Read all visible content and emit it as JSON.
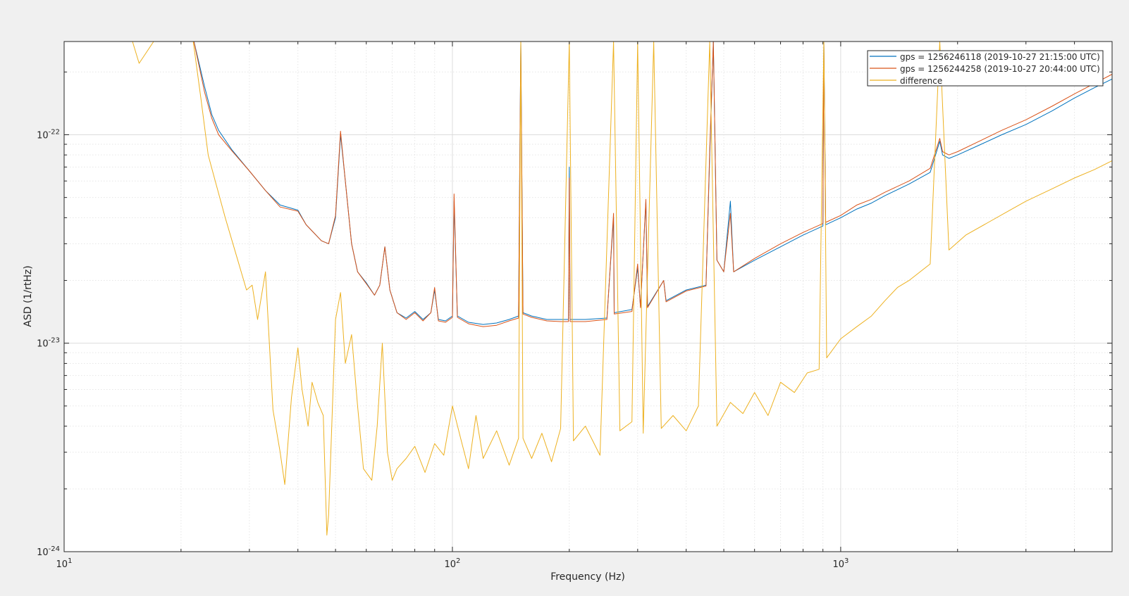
{
  "chart_data": {
    "type": "line",
    "xlabel": "Frequency (Hz)",
    "ylabel": "ASD (1/rtHz)",
    "xscale": "log",
    "yscale": "log",
    "xlim": [
      10,
      5000
    ],
    "ylim": [
      1e-24,
      2.8e-22
    ],
    "grid": true,
    "minor_grid": true,
    "legend_position": "top-right",
    "x_ticks": [
      {
        "value": 10,
        "base": "10",
        "exp": "1"
      },
      {
        "value": 100,
        "base": "10",
        "exp": "2"
      },
      {
        "value": 1000,
        "base": "10",
        "exp": "3"
      }
    ],
    "y_ticks": [
      {
        "value": 1e-24,
        "base": "10",
        "exp": "-24"
      },
      {
        "value": 1e-23,
        "base": "10",
        "exp": "-23"
      },
      {
        "value": 1e-22,
        "base": "10",
        "exp": "-22"
      }
    ],
    "series": [
      {
        "name": "gps = 1256246118 (2019-10-27 21:15:00 UTC)",
        "color": "#0072BD",
        "points": [
          [
            21.5,
            2.9e-22
          ],
          [
            23,
            1.7e-22
          ],
          [
            24,
            1.25e-22
          ],
          [
            25,
            1.05e-22
          ],
          [
            27,
            8.5e-23
          ],
          [
            30,
            6.7e-23
          ],
          [
            33,
            5.4e-23
          ],
          [
            36,
            4.6e-23
          ],
          [
            40,
            4.35e-23
          ],
          [
            42,
            3.7e-23
          ],
          [
            46,
            3.1e-23
          ],
          [
            48,
            3e-23
          ],
          [
            50,
            4e-23
          ],
          [
            51.5,
            1e-22
          ],
          [
            53,
            6e-23
          ],
          [
            55,
            3e-23
          ],
          [
            57,
            2.2e-23
          ],
          [
            60,
            1.95e-23
          ],
          [
            63,
            1.7e-23
          ],
          [
            65,
            1.9e-23
          ],
          [
            67,
            2.9e-23
          ],
          [
            69,
            1.8e-23
          ],
          [
            72,
            1.4e-23
          ],
          [
            76,
            1.32e-23
          ],
          [
            80,
            1.42e-23
          ],
          [
            84,
            1.3e-23
          ],
          [
            88,
            1.4e-23
          ],
          [
            90,
            1.8e-23
          ],
          [
            92,
            1.3e-23
          ],
          [
            96,
            1.28e-23
          ],
          [
            100,
            1.35e-23
          ],
          [
            101,
            4.8e-23
          ],
          [
            103,
            1.35e-23
          ],
          [
            110,
            1.26e-23
          ],
          [
            120,
            1.23e-23
          ],
          [
            130,
            1.25e-23
          ],
          [
            140,
            1.3e-23
          ],
          [
            148,
            1.35e-23
          ],
          [
            150,
            2.8e-22
          ],
          [
            152,
            1.4e-23
          ],
          [
            160,
            1.35e-23
          ],
          [
            175,
            1.3e-23
          ],
          [
            190,
            1.3e-23
          ],
          [
            199,
            1.3e-23
          ],
          [
            200,
            7e-23
          ],
          [
            201,
            1.3e-23
          ],
          [
            220,
            1.3e-23
          ],
          [
            250,
            1.32e-23
          ],
          [
            260,
            4e-23
          ],
          [
            261,
            1.4e-23
          ],
          [
            290,
            1.45e-23
          ],
          [
            300,
            2.3e-23
          ],
          [
            305,
            1.5e-23
          ],
          [
            315,
            4.8e-23
          ],
          [
            318,
            1.5e-23
          ],
          [
            350,
            2e-23
          ],
          [
            355,
            1.6e-23
          ],
          [
            400,
            1.8e-23
          ],
          [
            450,
            1.9e-23
          ],
          [
            460,
            8e-23
          ],
          [
            470,
            2.8e-22
          ],
          [
            480,
            2.5e-23
          ],
          [
            500,
            2.2e-23
          ],
          [
            520,
            4.8e-23
          ],
          [
            530,
            2.2e-23
          ],
          [
            600,
            2.5e-23
          ],
          [
            700,
            2.9e-23
          ],
          [
            800,
            3.3e-23
          ],
          [
            900,
            3.65e-23
          ],
          [
            905,
            2.8e-22
          ],
          [
            915,
            3.7e-23
          ],
          [
            1000,
            4e-23
          ],
          [
            1100,
            4.4e-23
          ],
          [
            1200,
            4.7e-23
          ],
          [
            1300,
            5.1e-23
          ],
          [
            1500,
            5.8e-23
          ],
          [
            1700,
            6.6e-23
          ],
          [
            1800,
            9.3e-23
          ],
          [
            1830,
            8e-23
          ],
          [
            1900,
            7.7e-23
          ],
          [
            2000,
            8e-23
          ],
          [
            2300,
            9e-23
          ],
          [
            2600,
            1e-22
          ],
          [
            3000,
            1.12e-22
          ],
          [
            3500,
            1.3e-22
          ],
          [
            4000,
            1.5e-22
          ],
          [
            4500,
            1.68e-22
          ],
          [
            5000,
            1.85e-22
          ]
        ]
      },
      {
        "name": "gps = 1256244258 (2019-10-27 20:44:00 UTC)",
        "color": "#D95319",
        "points": [
          [
            21.5,
            2.9e-22
          ],
          [
            23,
            1.6e-22
          ],
          [
            24,
            1.2e-22
          ],
          [
            25,
            1e-22
          ],
          [
            27,
            8.4e-23
          ],
          [
            30,
            6.7e-23
          ],
          [
            33,
            5.4e-23
          ],
          [
            36,
            4.5e-23
          ],
          [
            40,
            4.3e-23
          ],
          [
            42,
            3.7e-23
          ],
          [
            46,
            3.1e-23
          ],
          [
            48,
            3e-23
          ],
          [
            50,
            4.1e-23
          ],
          [
            51.5,
            1.04e-22
          ],
          [
            53,
            6e-23
          ],
          [
            55,
            3e-23
          ],
          [
            57,
            2.2e-23
          ],
          [
            60,
            1.93e-23
          ],
          [
            63,
            1.7e-23
          ],
          [
            65,
            1.9e-23
          ],
          [
            67,
            2.9e-23
          ],
          [
            69,
            1.8e-23
          ],
          [
            72,
            1.4e-23
          ],
          [
            76,
            1.3e-23
          ],
          [
            80,
            1.4e-23
          ],
          [
            84,
            1.28e-23
          ],
          [
            88,
            1.4e-23
          ],
          [
            90,
            1.85e-23
          ],
          [
            92,
            1.28e-23
          ],
          [
            96,
            1.26e-23
          ],
          [
            100,
            1.33e-23
          ],
          [
            101,
            5.2e-23
          ],
          [
            103,
            1.33e-23
          ],
          [
            110,
            1.24e-23
          ],
          [
            120,
            1.2e-23
          ],
          [
            130,
            1.22e-23
          ],
          [
            140,
            1.28e-23
          ],
          [
            148,
            1.32e-23
          ],
          [
            150,
            2.8e-22
          ],
          [
            152,
            1.38e-23
          ],
          [
            160,
            1.33e-23
          ],
          [
            175,
            1.28e-23
          ],
          [
            190,
            1.27e-23
          ],
          [
            199,
            1.27e-23
          ],
          [
            200,
            6.2e-23
          ],
          [
            201,
            1.27e-23
          ],
          [
            220,
            1.27e-23
          ],
          [
            250,
            1.3e-23
          ],
          [
            260,
            4.2e-23
          ],
          [
            261,
            1.38e-23
          ],
          [
            290,
            1.42e-23
          ],
          [
            300,
            2.4e-23
          ],
          [
            305,
            1.48e-23
          ],
          [
            315,
            4.9e-23
          ],
          [
            318,
            1.48e-23
          ],
          [
            350,
            2e-23
          ],
          [
            355,
            1.58e-23
          ],
          [
            400,
            1.78e-23
          ],
          [
            450,
            1.88e-23
          ],
          [
            460,
            8.5e-23
          ],
          [
            470,
            2.8e-22
          ],
          [
            480,
            2.5e-23
          ],
          [
            500,
            2.2e-23
          ],
          [
            520,
            4.2e-23
          ],
          [
            530,
            2.2e-23
          ],
          [
            600,
            2.55e-23
          ],
          [
            700,
            3e-23
          ],
          [
            800,
            3.4e-23
          ],
          [
            900,
            3.75e-23
          ],
          [
            905,
            2.8e-22
          ],
          [
            915,
            3.8e-23
          ],
          [
            1000,
            4.1e-23
          ],
          [
            1100,
            4.6e-23
          ],
          [
            1200,
            4.9e-23
          ],
          [
            1300,
            5.3e-23
          ],
          [
            1500,
            6e-23
          ],
          [
            1700,
            6.9e-23
          ],
          [
            1800,
            9.6e-23
          ],
          [
            1830,
            8.3e-23
          ],
          [
            1900,
            8e-23
          ],
          [
            2000,
            8.3e-23
          ],
          [
            2300,
            9.4e-23
          ],
          [
            2600,
            1.05e-22
          ],
          [
            3000,
            1.18e-22
          ],
          [
            3500,
            1.37e-22
          ],
          [
            4000,
            1.57e-22
          ],
          [
            4500,
            1.76e-22
          ],
          [
            5000,
            1.95e-22
          ]
        ]
      },
      {
        "name": "difference",
        "color": "#EDB120",
        "points": [
          [
            15,
            2.8e-22
          ],
          [
            15.6,
            2.2e-22
          ],
          [
            17,
            2.8e-22
          ],
          [
            21.5,
            2.8e-22
          ],
          [
            22.5,
            1.5e-22
          ],
          [
            23.5,
            8e-23
          ],
          [
            24.5,
            6e-23
          ],
          [
            26,
            4e-23
          ],
          [
            28,
            2.5e-23
          ],
          [
            29.5,
            1.8e-23
          ],
          [
            30.5,
            1.9e-23
          ],
          [
            31.5,
            1.3e-23
          ],
          [
            33,
            2.2e-23
          ],
          [
            34.5,
            4.8e-24
          ],
          [
            36,
            3e-24
          ],
          [
            37,
            2.1e-24
          ],
          [
            38.5,
            5.5e-24
          ],
          [
            40,
            9.5e-24
          ],
          [
            41,
            6e-24
          ],
          [
            42.5,
            4e-24
          ],
          [
            43.5,
            6.5e-24
          ],
          [
            45,
            5.2e-24
          ],
          [
            46.5,
            4.5e-24
          ],
          [
            47.5,
            1.2e-24
          ],
          [
            48,
            1.5e-24
          ],
          [
            50,
            1.3e-23
          ],
          [
            51.5,
            1.75e-23
          ],
          [
            53,
            8e-24
          ],
          [
            55,
            1.1e-23
          ],
          [
            57,
            5e-24
          ],
          [
            59,
            2.5e-24
          ],
          [
            62,
            2.2e-24
          ],
          [
            64,
            4e-24
          ],
          [
            66,
            1e-23
          ],
          [
            68,
            3e-24
          ],
          [
            70,
            2.2e-24
          ],
          [
            72,
            2.5e-24
          ],
          [
            76,
            2.8e-24
          ],
          [
            80,
            3.2e-24
          ],
          [
            85,
            2.4e-24
          ],
          [
            90,
            3.3e-24
          ],
          [
            95,
            2.9e-24
          ],
          [
            100,
            5e-24
          ],
          [
            105,
            3.5e-24
          ],
          [
            110,
            2.5e-24
          ],
          [
            115,
            4.5e-24
          ],
          [
            120,
            2.8e-24
          ],
          [
            130,
            3.8e-24
          ],
          [
            140,
            2.6e-24
          ],
          [
            148,
            3.5e-24
          ],
          [
            150,
            2.8e-22
          ],
          [
            152,
            3.5e-24
          ],
          [
            160,
            2.8e-24
          ],
          [
            170,
            3.7e-24
          ],
          [
            180,
            2.7e-24
          ],
          [
            190,
            3.9e-24
          ],
          [
            200,
            2.8e-22
          ],
          [
            205,
            3.4e-24
          ],
          [
            220,
            4e-24
          ],
          [
            240,
            2.9e-24
          ],
          [
            260,
            2.8e-22
          ],
          [
            270,
            3.8e-24
          ],
          [
            290,
            4.2e-24
          ],
          [
            300,
            2.8e-22
          ],
          [
            310,
            3.7e-24
          ],
          [
            330,
            2.8e-22
          ],
          [
            345,
            3.9e-24
          ],
          [
            370,
            4.5e-24
          ],
          [
            400,
            3.8e-24
          ],
          [
            430,
            5e-24
          ],
          [
            460,
            2.8e-22
          ],
          [
            480,
            4e-24
          ],
          [
            520,
            5.2e-24
          ],
          [
            560,
            4.6e-24
          ],
          [
            600,
            5.8e-24
          ],
          [
            650,
            4.5e-24
          ],
          [
            700,
            6.5e-24
          ],
          [
            760,
            5.8e-24
          ],
          [
            820,
            7.2e-24
          ],
          [
            880,
            7.5e-24
          ],
          [
            905,
            2.8e-22
          ],
          [
            920,
            8.5e-24
          ],
          [
            1000,
            1.05e-23
          ],
          [
            1100,
            1.2e-23
          ],
          [
            1200,
            1.35e-23
          ],
          [
            1300,
            1.6e-23
          ],
          [
            1400,
            1.85e-23
          ],
          [
            1500,
            2e-23
          ],
          [
            1700,
            2.4e-23
          ],
          [
            1800,
            2.8e-22
          ],
          [
            1900,
            2.8e-23
          ],
          [
            2100,
            3.3e-23
          ],
          [
            2400,
            3.8e-23
          ],
          [
            2700,
            4.3e-23
          ],
          [
            3000,
            4.8e-23
          ],
          [
            3500,
            5.5e-23
          ],
          [
            4000,
            6.2e-23
          ],
          [
            4500,
            6.8e-23
          ],
          [
            5000,
            7.5e-23
          ]
        ]
      }
    ]
  }
}
